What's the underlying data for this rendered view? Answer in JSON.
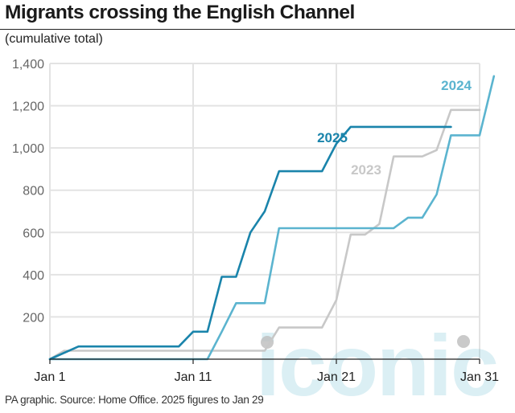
{
  "title": "Migrants crossing the English Channel",
  "subtitle": "(cumulative total)",
  "source": "PA graphic. Source: Home Office. 2025 figures to Jan 29",
  "watermark": "iconic",
  "chart_data": {
    "type": "line",
    "title": "Migrants crossing the English Channel",
    "ylabel": "(cumulative total)",
    "xlabel": "",
    "xlim": [
      1,
      31
    ],
    "ylim": [
      0,
      1400
    ],
    "y_ticks": [
      200,
      400,
      600,
      800,
      "1,000",
      "1,200",
      "1,400"
    ],
    "y_tick_values": [
      200,
      400,
      600,
      800,
      1000,
      1200,
      1400
    ],
    "x_ticks": [
      "Jan 1",
      "Jan 11",
      "Jan 21",
      "Jan 31"
    ],
    "x_tick_values": [
      1,
      11,
      21,
      31
    ],
    "grid": true,
    "series": [
      {
        "name": "2023",
        "color": "#c8c8c8",
        "points": [
          [
            1,
            0
          ],
          [
            2,
            40
          ],
          [
            15,
            40
          ],
          [
            16,
            40
          ],
          [
            17,
            150
          ],
          [
            19,
            150
          ],
          [
            20,
            150
          ],
          [
            21,
            280
          ],
          [
            22,
            590
          ],
          [
            23,
            590
          ],
          [
            24,
            640
          ],
          [
            25,
            960
          ],
          [
            27,
            960
          ],
          [
            28,
            990
          ],
          [
            29,
            1180
          ],
          [
            31,
            1180
          ]
        ]
      },
      {
        "name": "2024",
        "color": "#5bb4cf",
        "points": [
          [
            1,
            0
          ],
          [
            12,
            0
          ],
          [
            13,
            130
          ],
          [
            14,
            265
          ],
          [
            16,
            265
          ],
          [
            17,
            620
          ],
          [
            25,
            620
          ],
          [
            26,
            670
          ],
          [
            27,
            670
          ],
          [
            28,
            780
          ],
          [
            29,
            1060
          ],
          [
            31,
            1060
          ],
          [
            32,
            1340
          ]
        ]
      },
      {
        "name": "2025",
        "color": "#1a84ab",
        "points": [
          [
            1,
            0
          ],
          [
            3,
            60
          ],
          [
            10,
            60
          ],
          [
            11,
            130
          ],
          [
            12,
            130
          ],
          [
            13,
            390
          ],
          [
            14,
            390
          ],
          [
            15,
            600
          ],
          [
            16,
            700
          ],
          [
            17,
            890
          ],
          [
            20,
            890
          ],
          [
            21,
            1020
          ],
          [
            22,
            1100
          ],
          [
            29,
            1100
          ]
        ]
      }
    ]
  }
}
